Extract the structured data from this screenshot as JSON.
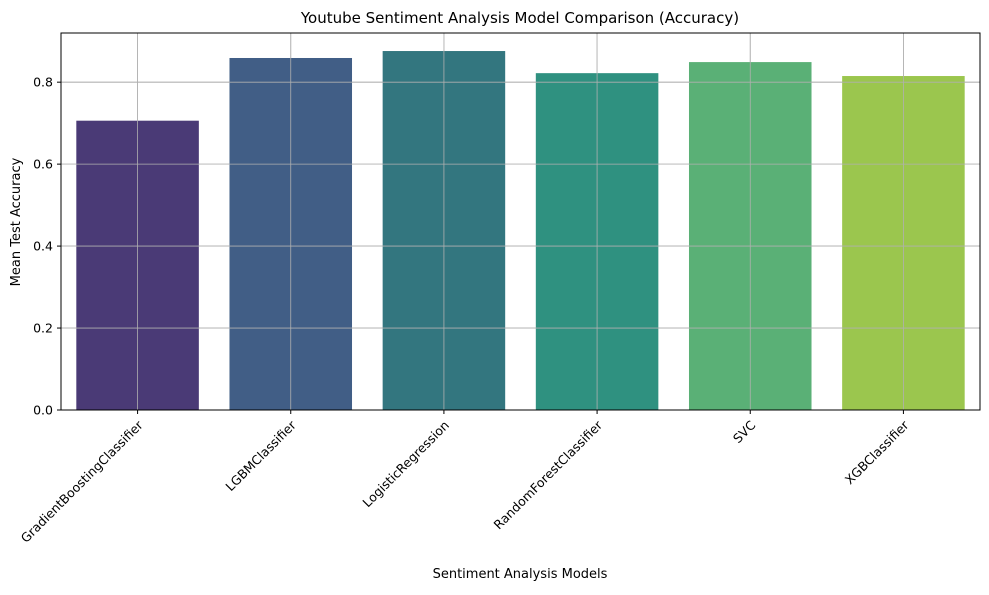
{
  "chart_data": {
    "type": "bar",
    "title": "Youtube Sentiment Analysis Model Comparison (Accuracy)",
    "xlabel": "Sentiment Analysis Models",
    "ylabel": "Mean Test Accuracy",
    "categories": [
      "GradientBoostingClassifier",
      "LGBMClassifier",
      "LogisticRegression",
      "RandomForestClassifier",
      "SVC",
      "XGBClassifier"
    ],
    "values": [
      0.706,
      0.859,
      0.876,
      0.822,
      0.849,
      0.815
    ],
    "colors": [
      "#4a3a76",
      "#415e86",
      "#33767f",
      "#2f9180",
      "#5ab076",
      "#9bc64e"
    ],
    "ylim": [
      0,
      0.92
    ],
    "yticks": [
      0.0,
      0.2,
      0.4,
      0.6,
      0.8
    ],
    "ytick_labels": [
      "0.0",
      "0.2",
      "0.4",
      "0.6",
      "0.8"
    ],
    "grid": true,
    "xtick_rotation_deg": 45
  }
}
